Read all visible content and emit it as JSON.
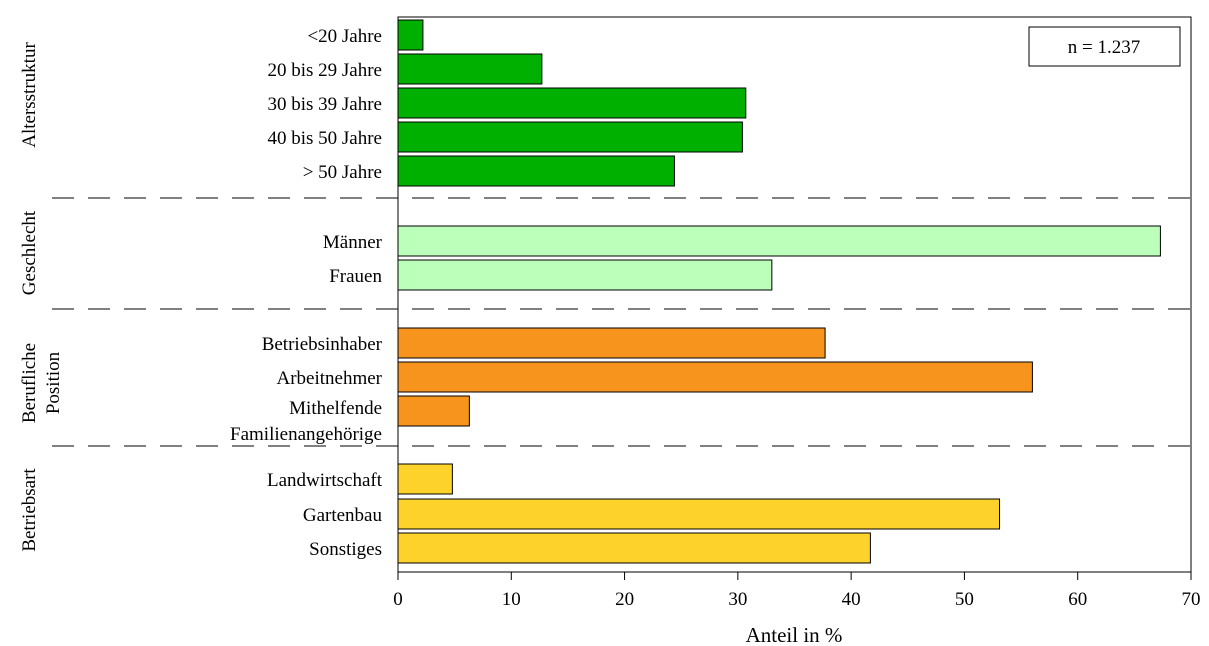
{
  "chart_data": {
    "type": "bar",
    "orientation": "horizontal",
    "xlabel": "Anteil in %",
    "xlim": [
      0,
      70
    ],
    "xticks": [
      0,
      10,
      20,
      30,
      40,
      50,
      60,
      70
    ],
    "grid": false,
    "annotation": "n = 1.237",
    "groups": [
      {
        "name": "Altersstruktur",
        "color": "#00b000",
        "categories": [
          "<20 Jahre",
          "20 bis 29 Jahre",
          "30 bis 39 Jahre",
          "40 bis 50 Jahre",
          "> 50 Jahre"
        ],
        "values": [
          2.2,
          12.7,
          30.7,
          30.4,
          24.4
        ]
      },
      {
        "name": "Geschlecht",
        "color": "#bbffbb",
        "categories": [
          "Männer",
          "Frauen"
        ],
        "values": [
          67.3,
          33.0
        ]
      },
      {
        "name": "Berufliche Position",
        "color": "#f7941d",
        "categories": [
          "Betriebsinhaber",
          "Arbeitnehmer",
          "Mithelfende Familienangehörige"
        ],
        "values": [
          37.7,
          56.0,
          6.3
        ]
      },
      {
        "name": "Betriebsart",
        "color": "#fdd22b",
        "categories": [
          "Landwirtschaft",
          "Gartenbau",
          "Sonstiges"
        ],
        "values": [
          4.8,
          53.1,
          41.7
        ]
      }
    ]
  }
}
